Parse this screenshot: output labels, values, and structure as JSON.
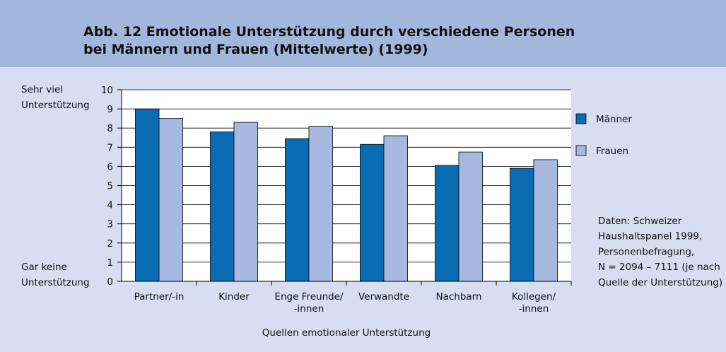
{
  "chart_data": {
    "type": "bar",
    "title": "Abb. 12  Emotionale Unterstützung durch verschiedene Personen\nbei Männern und Frauen (Mittelwerte) (1999)",
    "y_label_top": "Sehr viel\nUnterstützung",
    "y_label_bottom": "Gar keine\nUnterstützung",
    "x_label": "Quellen emotionaler Unterstützung",
    "source": "Daten: Schweizer\nHaushaltspanel 1999,\nPersonenbefragung,\nN = 2094 – 7111 (je nach\nQuelle der Unterstützung)",
    "categories": [
      "Partner/-in",
      "Kinder",
      "Enge Freunde/\n-innen",
      "Verwandte",
      "Nachbarn",
      "Kollegen/\n-innen"
    ],
    "series": [
      {
        "name": "Männer",
        "color": "#0a6db3",
        "values": [
          9.0,
          7.8,
          7.45,
          7.15,
          6.05,
          5.9
        ]
      },
      {
        "name": "Frauen",
        "color": "#a7b9e0",
        "values": [
          8.5,
          8.3,
          8.1,
          7.6,
          6.75,
          6.35
        ]
      }
    ],
    "ylim": [
      0,
      10
    ],
    "yticks": [
      0,
      1,
      2,
      3,
      4,
      5,
      6,
      7,
      8,
      9,
      10
    ],
    "grid": true
  }
}
